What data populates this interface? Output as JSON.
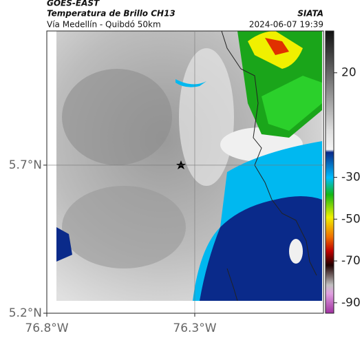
{
  "header": {
    "source": "GOES-EAST",
    "product": "Temperatura de Brillo CH13",
    "agency": "SIATA",
    "route": "Vía Medellín - Quibdó 50km",
    "timestamp": "2024-06-07 19:39"
  },
  "map": {
    "xlim": [
      -76.8,
      -75.865
    ],
    "ylim": [
      5.2,
      6.153
    ],
    "xticks": [
      {
        "value": -76.8,
        "label": "76.8°W"
      },
      {
        "value": -76.3,
        "label": "76.3°W"
      }
    ],
    "yticks": [
      {
        "value": 5.2,
        "label": "5.2°N"
      },
      {
        "value": 5.7,
        "label": "5.7°N"
      }
    ],
    "grid": true
  },
  "colorbar": {
    "clim": [
      40,
      -95
    ],
    "ticks": [
      20,
      -30,
      -50,
      -70,
      -90
    ]
  }
}
